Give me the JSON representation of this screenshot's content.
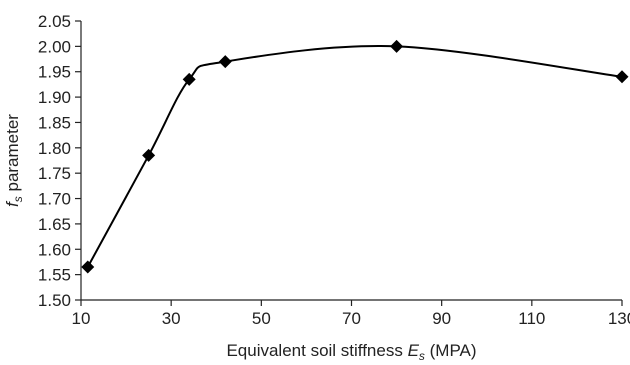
{
  "chart_data": {
    "type": "line",
    "title": "",
    "xlabel": {
      "main": "Equivalent soil stiffness ",
      "symbol": "E",
      "subscript": "s",
      "unit": " (MPA)"
    },
    "ylabel": {
      "symbol": "f",
      "subscript": "s",
      "main": " parameter"
    },
    "xlim": [
      10,
      130
    ],
    "ylim": [
      1.5,
      2.05
    ],
    "x_ticks": [
      10,
      30,
      50,
      70,
      90,
      110,
      130
    ],
    "x_tick_labels": [
      "10",
      "30",
      "50",
      "70",
      "90",
      "110",
      "130"
    ],
    "y_ticks": [
      1.5,
      1.55,
      1.6,
      1.65,
      1.7,
      1.75,
      1.8,
      1.85,
      1.9,
      1.95,
      2.0,
      2.05
    ],
    "y_tick_labels": [
      "1.50",
      "1.55",
      "1.60",
      "1.65",
      "1.70",
      "1.75",
      "1.80",
      "1.85",
      "1.90",
      "1.95",
      "2.00",
      "2.05"
    ],
    "grid": false,
    "legend": "none",
    "marker": "diamond",
    "line_style": "smooth",
    "line_color": "#000000",
    "series": [
      {
        "x": [
          11.5,
          25,
          34,
          42,
          80,
          130
        ],
        "y": [
          1.565,
          1.785,
          1.935,
          1.97,
          2.0,
          1.94
        ]
      }
    ]
  }
}
